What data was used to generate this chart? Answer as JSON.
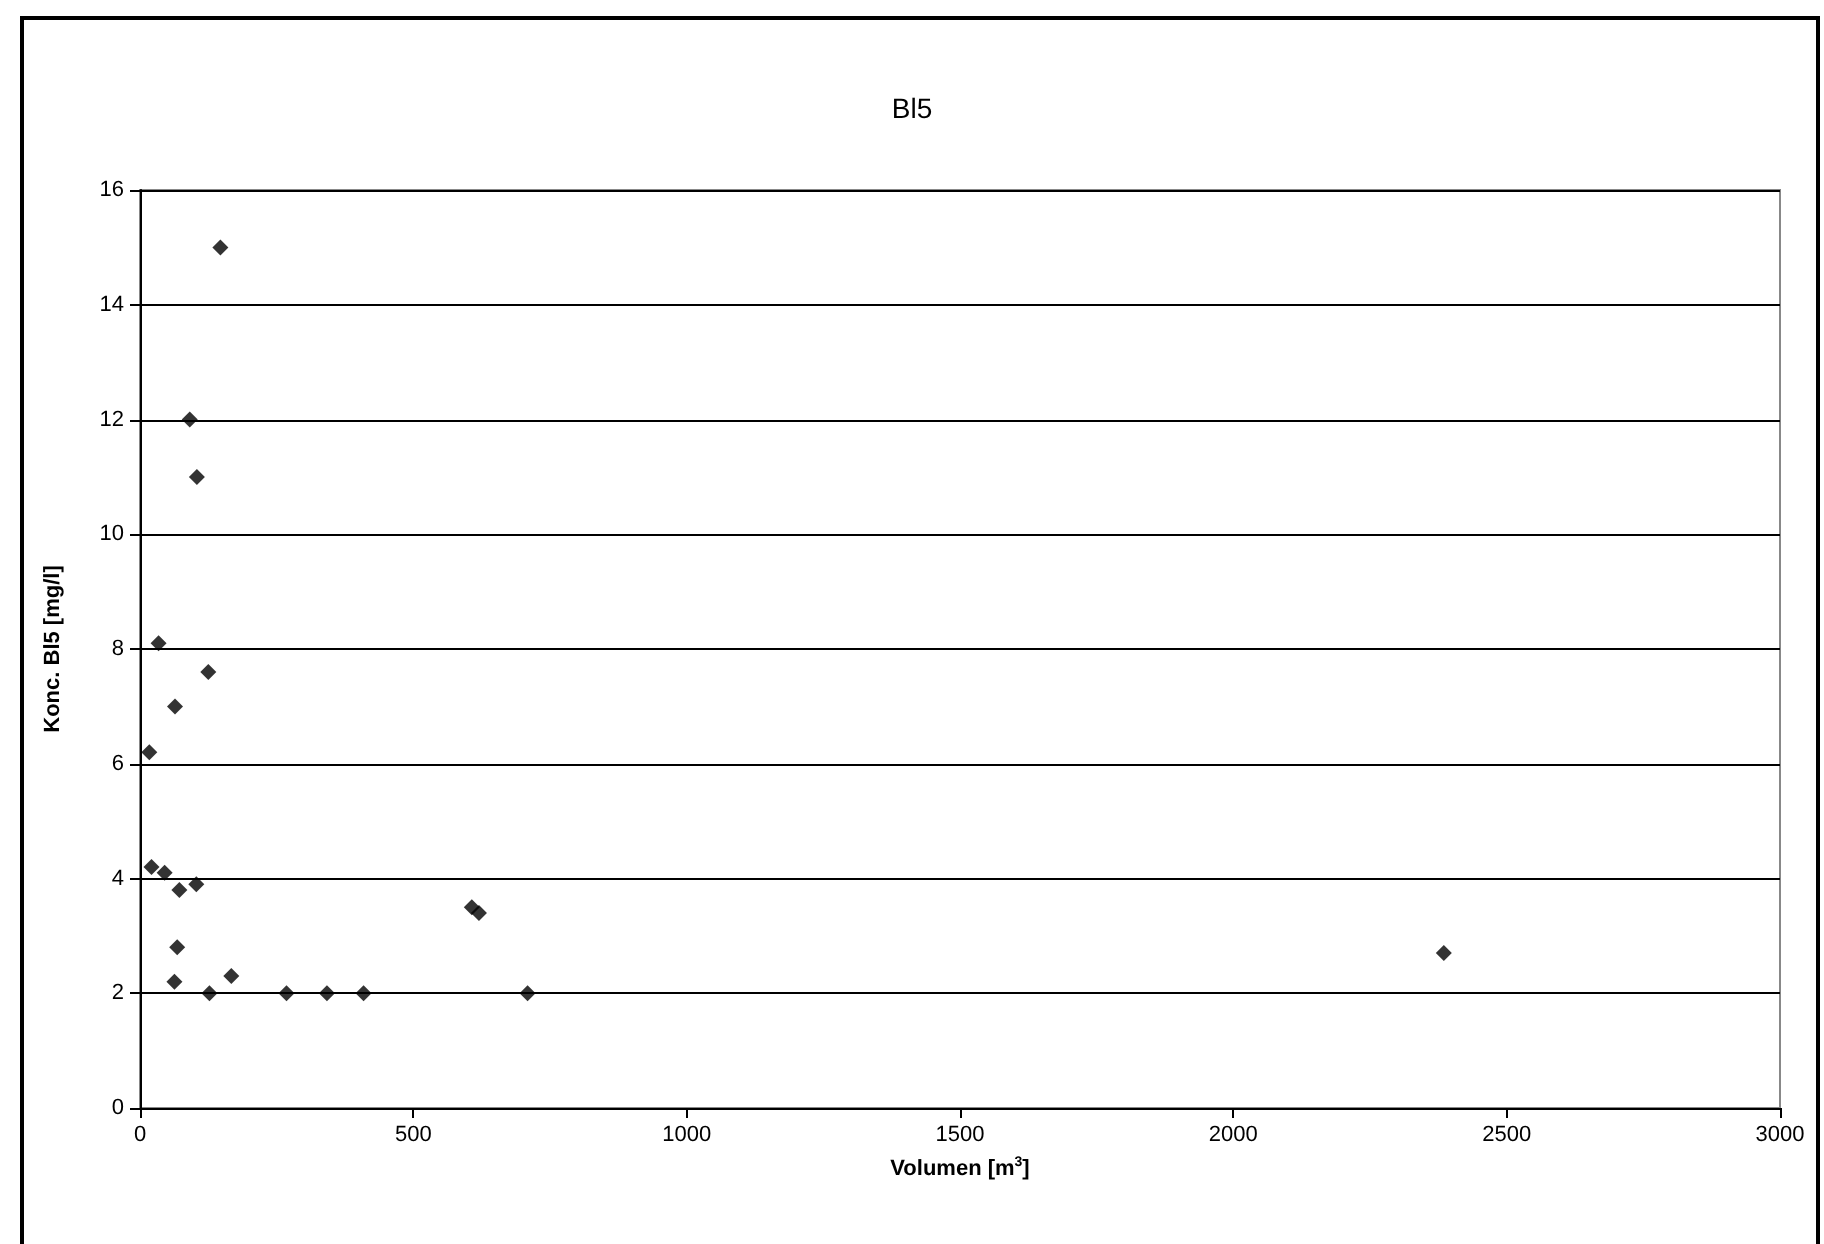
{
  "chart_data": {
    "type": "scatter",
    "title": "Bl5",
    "xlabel": "Volumen [m$^{3}$]",
    "ylabel": "Konc. Bl5 [mg/l]",
    "x": [
      147,
      91,
      104,
      34,
      125,
      64,
      17,
      21,
      45,
      72,
      103,
      68,
      63,
      127,
      167,
      268,
      342,
      409,
      607,
      620,
      709,
      2385
    ],
    "values": [
      15.0,
      12.0,
      11.0,
      8.1,
      7.6,
      7.0,
      6.2,
      4.2,
      4.1,
      3.8,
      3.9,
      2.8,
      2.2,
      2.0,
      2.3,
      2.0,
      2.0,
      2.0,
      3.5,
      3.4,
      2.0,
      2.7
    ],
    "color": "#000000",
    "marker": "diamond",
    "xlim": [
      0,
      3000
    ],
    "xticks": [
      0,
      500,
      1000,
      1500,
      2000,
      2500,
      3000
    ],
    "ylim": [
      0,
      16
    ],
    "yticks": [
      0,
      2,
      4,
      6,
      8,
      10,
      12,
      14,
      16
    ],
    "grid": "y"
  }
}
